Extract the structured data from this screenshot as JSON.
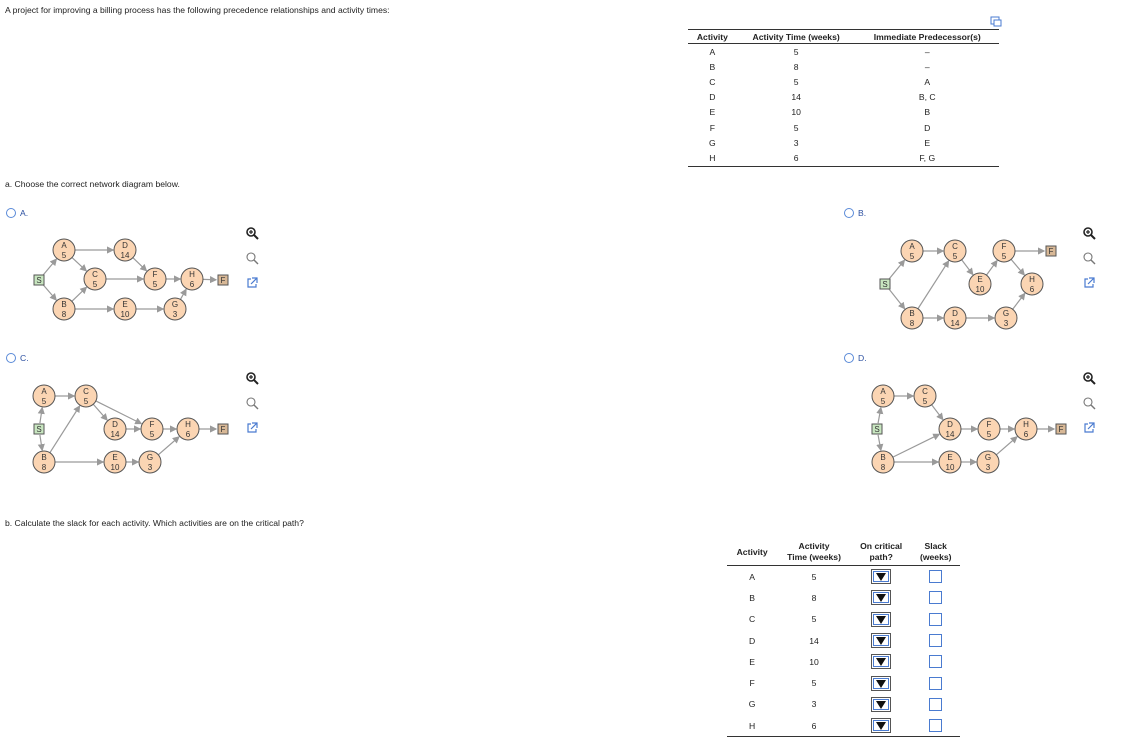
{
  "intro": "A project for improving a billing process has the following precedence relationships and activity times:",
  "table1": {
    "headers": [
      "Activity",
      "Activity Time (weeks)",
      "Immediate Predecessor(s)"
    ],
    "rows": [
      [
        "A",
        "5",
        "–"
      ],
      [
        "B",
        "8",
        "–"
      ],
      [
        "C",
        "5",
        "A"
      ],
      [
        "D",
        "14",
        "B, C"
      ],
      [
        "E",
        "10",
        "B"
      ],
      [
        "F",
        "5",
        "D"
      ],
      [
        "G",
        "3",
        "E"
      ],
      [
        "H",
        "6",
        "F, G"
      ]
    ]
  },
  "part_a": "a. Choose the correct network diagram below.",
  "options": {
    "A": "A.",
    "B": "B.",
    "C": "C.",
    "D": "D."
  },
  "diagram": {
    "start": "S",
    "finish": "F",
    "nodes": {
      "A": {
        "name": "A",
        "time": "5"
      },
      "B": {
        "name": "B",
        "time": "8"
      },
      "C": {
        "name": "C",
        "time": "5"
      },
      "D": {
        "name": "D",
        "time": "14"
      },
      "E": {
        "name": "E",
        "time": "10"
      },
      "F": {
        "name": "F",
        "time": "5"
      },
      "G": {
        "name": "G",
        "time": "3"
      },
      "H": {
        "name": "H",
        "time": "6"
      }
    }
  },
  "part_b": "b. Calculate the slack for each activity. Which activities are on the critical path?",
  "table2": {
    "headers": {
      "activity": "Activity",
      "time_l1": "Activity",
      "time_l2": "Time (weeks)",
      "crit_l1": "On critical",
      "crit_l2": "path?",
      "slack_l1": "Slack",
      "slack_l2": "(weeks)"
    },
    "rows": [
      [
        "A",
        "5"
      ],
      [
        "B",
        "8"
      ],
      [
        "C",
        "5"
      ],
      [
        "D",
        "14"
      ],
      [
        "E",
        "10"
      ],
      [
        "F",
        "5"
      ],
      [
        "G",
        "3"
      ],
      [
        "H",
        "6"
      ]
    ]
  },
  "icons": {
    "zoom_in": "zoom-in-icon",
    "zoom_out": "zoom-out-icon",
    "popout": "popout-icon",
    "print": "print-icon"
  }
}
